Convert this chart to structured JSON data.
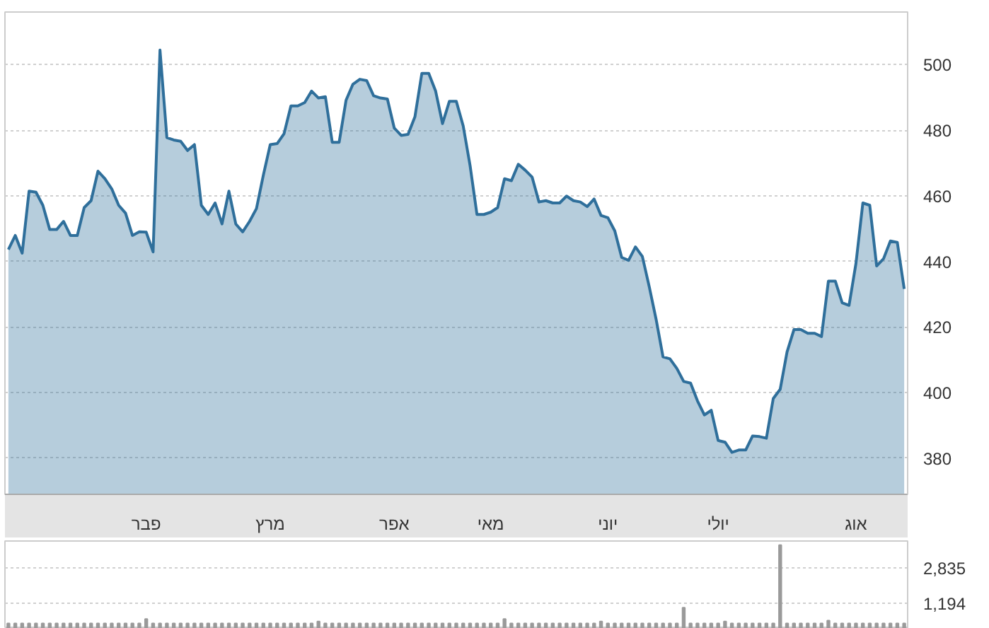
{
  "chart_data": [
    {
      "type": "area",
      "categories": [
        null,
        null,
        null,
        null,
        null,
        null,
        null,
        null,
        null,
        null,
        null,
        null,
        null,
        null,
        null,
        null,
        null,
        null,
        null,
        null,
        "פבר",
        null,
        null,
        null,
        null,
        null,
        null,
        null,
        null,
        null,
        null,
        null,
        null,
        null,
        null,
        null,
        null,
        null,
        "מרץ",
        null,
        null,
        null,
        null,
        null,
        null,
        null,
        null,
        null,
        null,
        null,
        null,
        null,
        null,
        null,
        null,
        null,
        "אפר",
        null,
        null,
        null,
        null,
        null,
        null,
        null,
        null,
        null,
        null,
        null,
        null,
        null,
        "מאי",
        null,
        null,
        null,
        null,
        null,
        null,
        null,
        null,
        null,
        null,
        null,
        null,
        null,
        null,
        null,
        null,
        "יוני",
        null,
        null,
        null,
        null,
        null,
        null,
        null,
        null,
        null,
        null,
        null,
        null,
        null,
        null,
        null,
        "יולי",
        null,
        null,
        null,
        null,
        null,
        null,
        null,
        null,
        null,
        null,
        null,
        null,
        null,
        null,
        null,
        null,
        null,
        null,
        null,
        "אוג",
        null,
        null,
        null,
        null,
        null,
        null,
        null
      ],
      "series": [
        {
          "color": "#2f6f9b",
          "values": [
            443.6,
            447.9,
            442.5,
            461.4,
            461.1,
            457.1,
            449.7,
            449.7,
            452.2,
            447.9,
            447.9,
            456.4,
            458.5,
            467.5,
            465.2,
            462.1,
            457.1,
            454.7,
            447.9,
            449.0,
            448.9,
            442.9,
            504.4,
            477.7,
            477.0,
            476.6,
            473.8,
            475.6,
            457.1,
            454.3,
            457.8,
            451.4,
            461.4,
            451.4,
            449.0,
            452.2,
            456.1,
            466.3,
            475.6,
            475.9,
            478.9,
            487.4,
            487.4,
            488.4,
            491.9,
            489.8,
            490.2,
            476.3,
            476.3,
            489.1,
            494.0,
            495.5,
            495.1,
            490.5,
            489.8,
            489.5,
            480.6,
            478.4,
            478.7,
            484.1,
            497.3,
            497.3,
            491.9,
            482.0,
            488.8,
            488.8,
            481.3,
            469.2,
            454.3,
            454.3,
            455.0,
            456.4,
            465.2,
            464.6,
            469.6,
            467.8,
            465.7,
            458.1,
            458.5,
            457.8,
            457.8,
            459.9,
            458.5,
            458.1,
            456.7,
            459.0,
            454.0,
            453.3,
            449.3,
            441.2,
            440.3,
            444.4,
            441.5,
            432.3,
            422.3,
            410.9,
            410.3,
            407.4,
            403.4,
            402.9,
            397.5,
            393.2,
            394.6,
            385.4,
            384.9,
            381.8,
            382.5,
            382.5,
            386.8,
            386.6,
            386.1,
            398.2,
            401.0,
            412.4,
            419.2,
            419.2,
            418.1,
            418.1,
            417.1,
            434.0,
            434.0,
            427.4,
            426.6,
            439.4,
            457.8,
            457.1,
            438.6,
            440.8,
            446.2,
            445.8,
            431.6
          ]
        }
      ],
      "ylim": [
        369,
        516
      ],
      "yticks": [
        380,
        400,
        420,
        440,
        460,
        480,
        500
      ],
      "grid": "y"
    },
    {
      "type": "bar",
      "categories": [
        null,
        null,
        null,
        null,
        null,
        null,
        null,
        null,
        null,
        null,
        null,
        null,
        null,
        null,
        null,
        null,
        null,
        null,
        null,
        null,
        null,
        null,
        null,
        null,
        null,
        null,
        null,
        null,
        null,
        null,
        null,
        null,
        null,
        null,
        null,
        null,
        null,
        null,
        null,
        null,
        null,
        null,
        null,
        null,
        null,
        null,
        null,
        null,
        null,
        null,
        null,
        null,
        null,
        null,
        null,
        null,
        null,
        null,
        null,
        null,
        null,
        null,
        null,
        null,
        null,
        null,
        null,
        null,
        null,
        null,
        null,
        null,
        null,
        null,
        null,
        null,
        null,
        null,
        null,
        null,
        null,
        null,
        null,
        null,
        null,
        null,
        null,
        null,
        null,
        null,
        null,
        null,
        null,
        null,
        null,
        null,
        null,
        null,
        null,
        null,
        null,
        null,
        null,
        null,
        null,
        null,
        null,
        null,
        null,
        null,
        null,
        null,
        null,
        null,
        null,
        null,
        null,
        null,
        null,
        null,
        null,
        null,
        null,
        null,
        null,
        null,
        null,
        null,
        null,
        null,
        null
      ],
      "series": [
        {
          "color": "#9a9a9a",
          "values": [
            250,
            250,
            250,
            250,
            250,
            250,
            250,
            250,
            250,
            250,
            250,
            250,
            250,
            250,
            250,
            250,
            250,
            250,
            250,
            250,
            450,
            250,
            250,
            250,
            250,
            250,
            250,
            250,
            250,
            250,
            250,
            250,
            250,
            250,
            250,
            250,
            250,
            250,
            250,
            250,
            250,
            250,
            250,
            250,
            250,
            340,
            250,
            250,
            250,
            250,
            250,
            250,
            250,
            250,
            250,
            250,
            250,
            250,
            250,
            250,
            250,
            250,
            250,
            250,
            250,
            250,
            250,
            250,
            250,
            250,
            250,
            250,
            450,
            250,
            250,
            250,
            250,
            250,
            250,
            250,
            250,
            250,
            250,
            250,
            250,
            250,
            340,
            250,
            250,
            250,
            250,
            250,
            250,
            250,
            250,
            250,
            250,
            250,
            980,
            250,
            250,
            250,
            250,
            250,
            340,
            250,
            250,
            250,
            250,
            250,
            250,
            250,
            3880,
            250,
            250,
            250,
            250,
            250,
            250,
            380,
            250,
            250,
            250,
            250,
            250,
            250,
            250,
            250,
            250,
            250,
            250
          ]
        }
      ],
      "ylim": [
        0,
        4070
      ],
      "yticks": [
        {
          "value": 1194,
          "label": "1,194"
        },
        {
          "value": 2835,
          "label": "2,835"
        }
      ],
      "grid": "y",
      "tick_labels": "y"
    }
  ]
}
